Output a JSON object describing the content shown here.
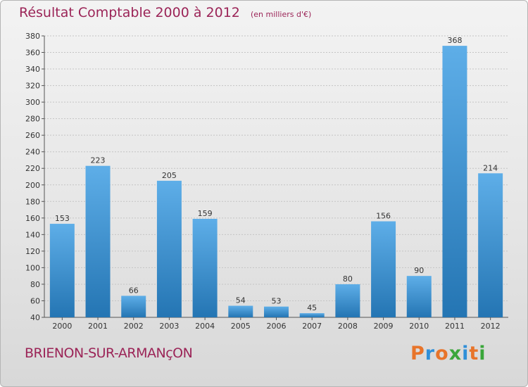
{
  "header": {
    "title": "Résultat Comptable 2000 à 2012",
    "subtitle": "(en milliers d'€)"
  },
  "footer": {
    "commune": "BRIENON-SUR-ARMANçON",
    "brand": "Proxiti",
    "brand_colors": [
      "#e8742a",
      "#2f8fd8",
      "#e8742a",
      "#3aa63a",
      "#2f8fd8",
      "#e8742a",
      "#3aa63a"
    ]
  },
  "colors": {
    "bar_light": "#5eaee8",
    "bar_dark": "#2475b3",
    "title": "#9b2457"
  },
  "chart_data": {
    "type": "bar",
    "categories": [
      "2000",
      "2001",
      "2002",
      "2003",
      "2004",
      "2005",
      "2006",
      "2007",
      "2008",
      "2009",
      "2010",
      "2011",
      "2012"
    ],
    "values": [
      153,
      223,
      66,
      205,
      159,
      54,
      53,
      45,
      80,
      156,
      90,
      368,
      214
    ],
    "ylim": [
      40,
      380
    ],
    "yticks": [
      40,
      60,
      80,
      100,
      120,
      140,
      160,
      180,
      200,
      220,
      240,
      260,
      280,
      300,
      320,
      340,
      360,
      380
    ],
    "grid": true,
    "data_labels": true
  }
}
